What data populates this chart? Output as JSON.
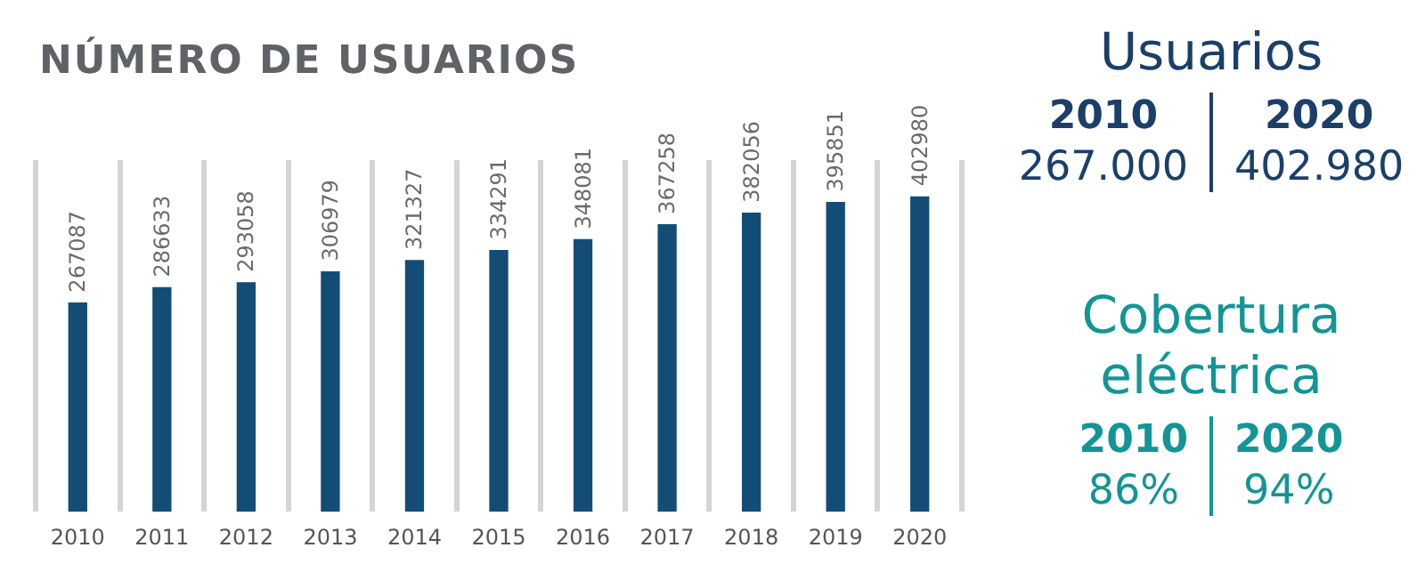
{
  "chart_data": [
    {
      "type": "bar",
      "title": "NÚMERO DE USUARIOS",
      "categories": [
        "2010",
        "2011",
        "2012",
        "2013",
        "2014",
        "2015",
        "2016",
        "2017",
        "2018",
        "2019",
        "2020"
      ],
      "values": [
        267087,
        286633,
        293058,
        306979,
        321327,
        334291,
        348081,
        367258,
        382056,
        395851,
        402980
      ],
      "color": "#134d75",
      "data_labels": true,
      "tick_labels": "x",
      "grid": "x",
      "legend": false
    },
    {
      "type": "other",
      "title": "Usuarios",
      "annotations": [
        "2010",
        "267.000",
        "2020",
        "402.980"
      ]
    },
    {
      "type": "other",
      "title": "Cobertura eléctrica",
      "annotations": [
        "2010",
        "86%",
        "2020",
        "94%"
      ]
    }
  ]
}
